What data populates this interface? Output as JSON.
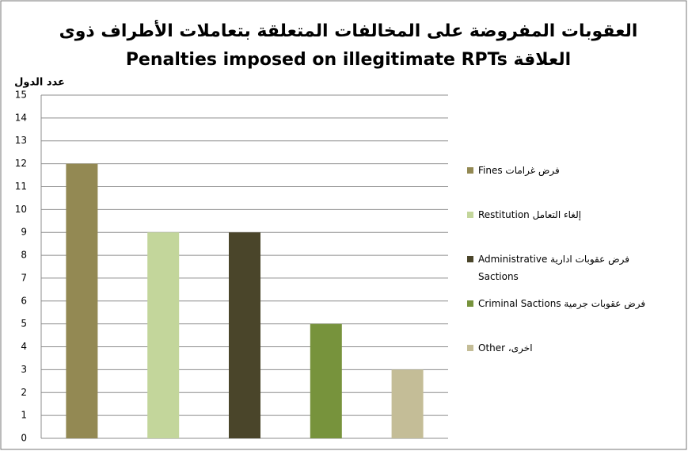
{
  "chart_data": {
    "type": "bar",
    "title": [
      "العقوبات المفروضة على المخالفات المتعلقة بتعاملات الأطراف ذوى",
      "العلاقة Penalties imposed on illegitimate RPTs"
    ],
    "y_label": "عدد الدول",
    "categories": [
      "فرض غرامات Fines",
      "إلغاء التعامل Restitution",
      "فرض عقوبات ادارية Administrative Sactions",
      "فرض عقوبات جرمية Criminal Sactions",
      "اخرى، Other"
    ],
    "values": [
      12,
      9,
      9,
      5,
      3
    ],
    "colors": [
      "#938953",
      "#c3d69b",
      "#4a452a",
      "#77933c",
      "#c4bd97"
    ],
    "ylim": [
      0,
      15
    ],
    "yticks": [
      0,
      1,
      2,
      3,
      4,
      5,
      6,
      7,
      8,
      9,
      10,
      11,
      12,
      13,
      14,
      15
    ],
    "grid": true,
    "legend": "right"
  }
}
